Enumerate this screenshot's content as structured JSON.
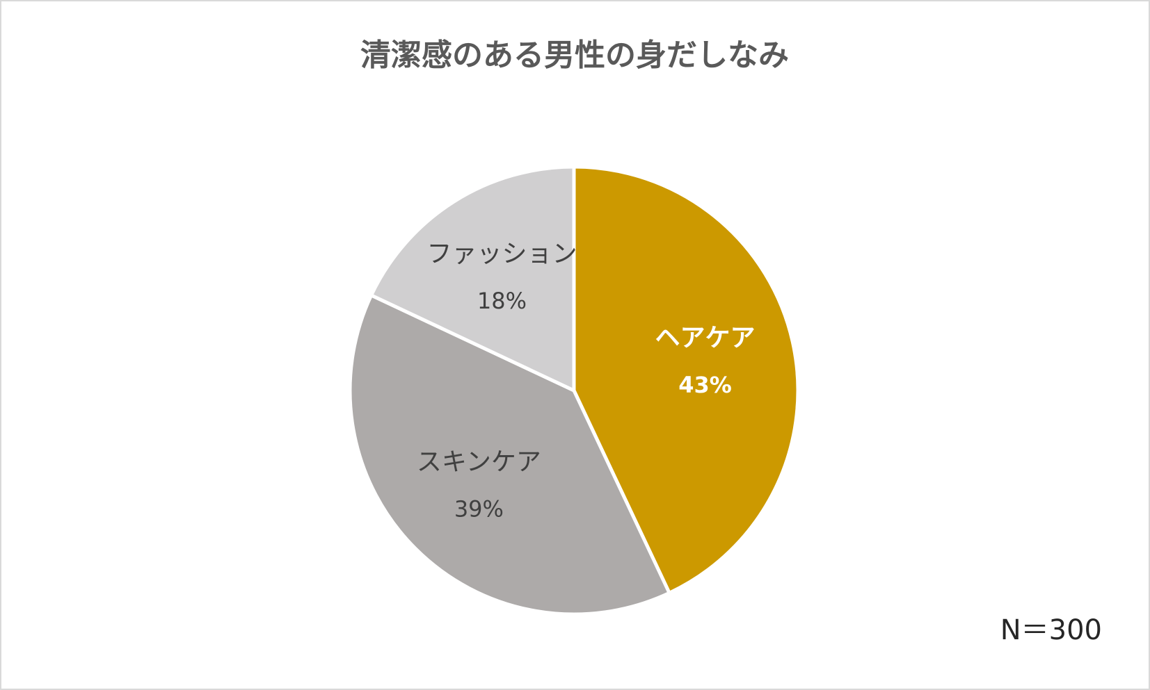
{
  "chart_data": {
    "type": "pie",
    "title": "清潔感のある男性の身だしなみ",
    "categories": [
      "ヘアケア",
      "スキンケア",
      "ファッション"
    ],
    "values": [
      43,
      39,
      18
    ],
    "value_labels": [
      "43%",
      "39%",
      "18%"
    ],
    "colors": [
      "#cc9900",
      "#adaaa9",
      "#d0cfd0"
    ],
    "annotation": "N＝300"
  }
}
